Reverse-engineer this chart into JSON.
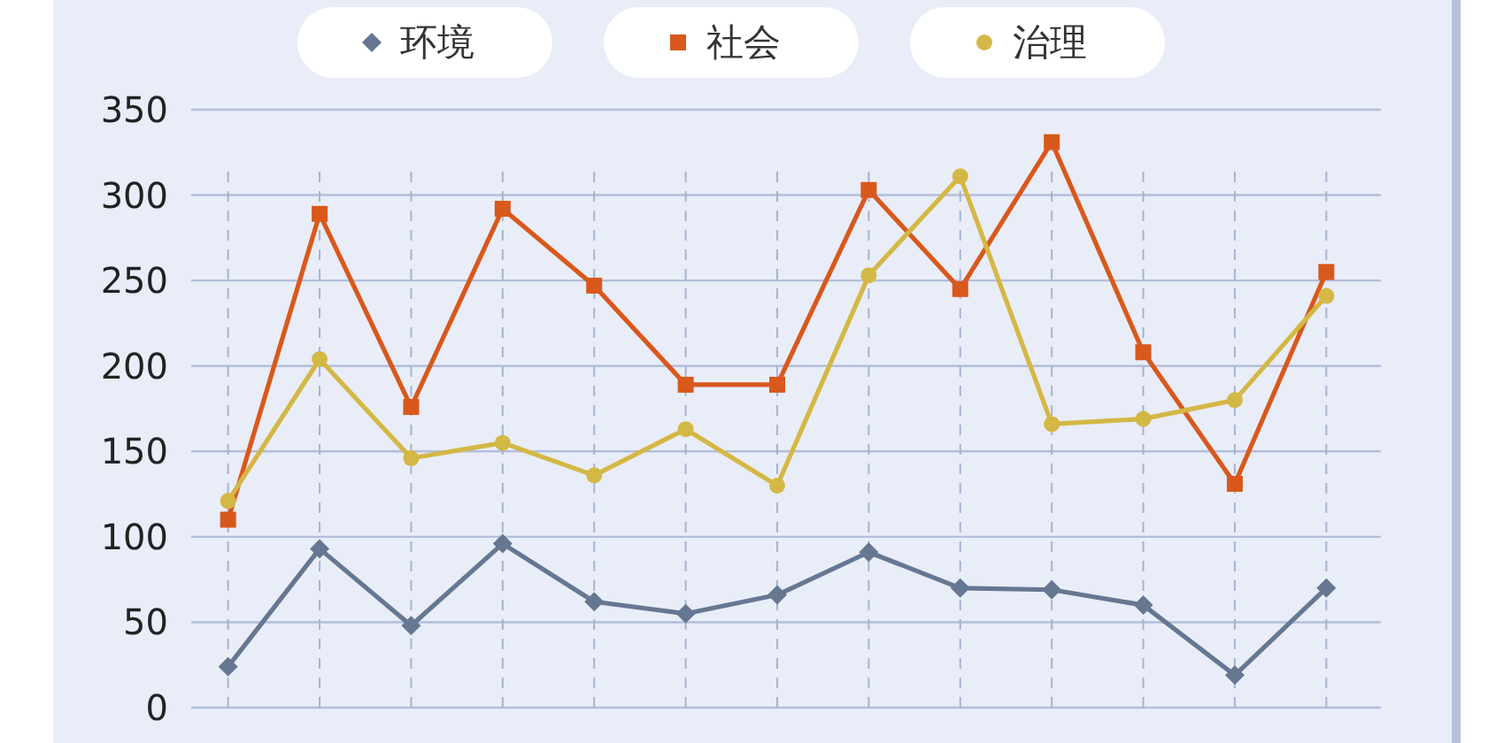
{
  "chart_data": {
    "type": "line",
    "categories": [
      null,
      null,
      null,
      null,
      null,
      null,
      null,
      null,
      null,
      null,
      null,
      null,
      null
    ],
    "series": [
      {
        "name": "环境",
        "color": "#667792",
        "marker": "diamond",
        "values": [
          24,
          93,
          48,
          96,
          62,
          55,
          66,
          91,
          70,
          69,
          60,
          19,
          70
        ]
      },
      {
        "name": "社会",
        "color": "#d9581c",
        "marker": "square",
        "values": [
          110,
          289,
          176,
          292,
          247,
          189,
          189,
          303,
          245,
          331,
          208,
          131,
          255
        ]
      },
      {
        "name": "治理",
        "color": "#d4b845",
        "marker": "circle",
        "values": [
          121,
          204,
          146,
          155,
          136,
          163,
          130,
          253,
          311,
          166,
          169,
          180,
          241
        ]
      }
    ],
    "ylim": [
      0,
      350
    ],
    "yticks": [
      0,
      50,
      100,
      150,
      200,
      250,
      300,
      350
    ],
    "grid": true,
    "legend": "top",
    "tick_labels": "y"
  }
}
